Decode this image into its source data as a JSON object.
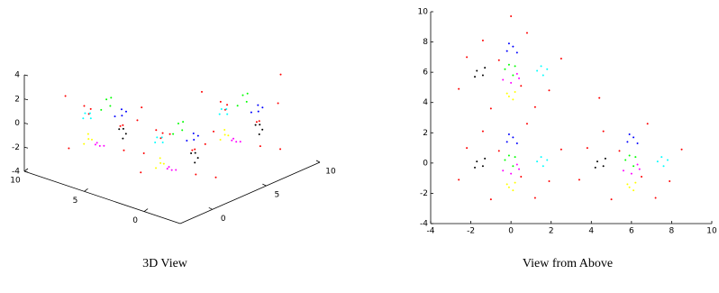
{
  "chart_data": [
    {
      "type": "scatter3d",
      "caption": "3D View",
      "xlim": [
        -3,
        10
      ],
      "ylim": [
        -3,
        10
      ],
      "zlim": [
        -4,
        4
      ],
      "xticks": [
        0,
        5,
        10
      ],
      "yticks": [
        0,
        5,
        10
      ],
      "zticks": [
        -4,
        -2,
        0,
        2,
        4
      ],
      "series": [
        {
          "color": "#ff0000",
          "x": [
            -2.2,
            1.9,
            -1,
            0.8,
            2.5,
            -2.6,
            1.2,
            -1.4,
            0.5,
            -0.6,
            -2.2,
            1.9,
            -1,
            0.8,
            2.5,
            -2.6,
            1.2,
            -1.4,
            0.5,
            -0.6,
            3.8,
            7.9,
            5,
            6.8,
            8.5,
            3.4,
            7.2,
            4.6,
            6.5,
            5.4,
            0,
            4.4
          ],
          "y": [
            7,
            4.8,
            3.6,
            8.6,
            6.9,
            4.9,
            3.7,
            8.1,
            5.1,
            6.8,
            1,
            -1.2,
            -2.4,
            2.6,
            0.9,
            -1.1,
            -2.3,
            2.1,
            -0.9,
            0.8,
            1,
            -1.2,
            -2.4,
            2.6,
            0.9,
            -1.1,
            -2.3,
            2.1,
            -0.9,
            0.8,
            9.7,
            4.3
          ],
          "z": [
            1.8,
            -2.1,
            2.6,
            -1.3,
            0.4,
            -0.8,
            2.9,
            -2.7,
            1.1,
            -0.2,
            1.8,
            -2.1,
            2.6,
            -1.3,
            0.4,
            -0.8,
            2.9,
            -2.7,
            1.1,
            -0.2,
            1.8,
            -2.1,
            2.6,
            -1.3,
            0.4,
            -0.8,
            2.9,
            -2.7,
            1.1,
            -0.2,
            2.4,
            -1.9
          ]
        },
        {
          "color": "#0000ff",
          "x": [
            -0.2,
            0.1,
            0.3,
            -0.1,
            -0.2,
            0.1,
            0.3,
            -0.1,
            5.8,
            6.1,
            6.3,
            5.9
          ],
          "y": [
            7.4,
            7.7,
            7.3,
            7.9,
            1.4,
            1.7,
            1.3,
            1.9,
            1.4,
            1.7,
            1.3,
            1.9
          ],
          "z": [
            0.3,
            0.6,
            0.1,
            0.4,
            0.3,
            0.6,
            0.1,
            0.4,
            0.3,
            0.6,
            0.1,
            0.4
          ]
        },
        {
          "color": "#000000",
          "x": [
            -1.7,
            -1.4,
            -1.3,
            -1.8,
            -1.7,
            -1.4,
            -1.3,
            -1.8,
            4.3,
            4.6,
            4.7,
            4.2
          ],
          "y": [
            6.1,
            5.8,
            6.3,
            5.7,
            0.1,
            -0.2,
            0.3,
            -0.3,
            0.1,
            -0.2,
            0.3,
            -0.3
          ],
          "z": [
            -0.2,
            0.2,
            0,
            -0.4,
            -0.2,
            0.2,
            0,
            -0.4,
            -0.2,
            0.2,
            0,
            -0.4
          ]
        },
        {
          "color": "#00ffff",
          "x": [
            1.3,
            1.6,
            1.8,
            1.5,
            1.3,
            1.6,
            1.8,
            1.5,
            7.3,
            7.6,
            7.8,
            7.5
          ],
          "y": [
            6.1,
            5.8,
            6.2,
            6.4,
            0.1,
            -0.2,
            0.2,
            0.4,
            0.1,
            -0.2,
            0.2,
            0.4
          ],
          "z": [
            0.5,
            0.1,
            0.3,
            -0.1,
            0.5,
            0.1,
            0.3,
            -0.1,
            0.5,
            0.1,
            0.3,
            -0.1
          ]
        },
        {
          "color": "#ffff00",
          "x": [
            -0.2,
            0.1,
            0.2,
            -0.1,
            -0.2,
            0.1,
            0.2,
            -0.1,
            5.8,
            6.1,
            6.2,
            5.9
          ],
          "y": [
            4.6,
            4.2,
            4.7,
            4.4,
            -1.4,
            -1.8,
            -1.3,
            -1.6,
            -1.4,
            -1.8,
            -1.3,
            -1.6
          ],
          "z": [
            -0.6,
            -0.9,
            -0.3,
            -0.5,
            -0.6,
            -0.9,
            -0.3,
            -0.5,
            -0.6,
            -0.9,
            -0.3,
            -0.5
          ]
        },
        {
          "color": "#00ff00",
          "x": [
            -0.3,
            0.2,
            0.1,
            -0.1,
            -0.3,
            0.2,
            0.1,
            -0.1,
            5.7,
            6.2,
            6.1,
            5.9
          ],
          "y": [
            6.2,
            6.4,
            5.8,
            6.5,
            0.2,
            0.4,
            -0.2,
            0.5,
            0.2,
            0.4,
            -0.2,
            0.5
          ],
          "z": [
            1.6,
            1.9,
            1.3,
            2.1,
            1.6,
            1.9,
            1.3,
            2.1,
            1.6,
            1.9,
            1.3,
            2.1
          ]
        },
        {
          "color": "#ff00ff",
          "x": [
            -0.4,
            0.3,
            0,
            0.4,
            -0.4,
            0.3,
            0,
            0.4,
            5.6,
            6.3,
            6,
            6.4
          ],
          "y": [
            5.5,
            5.9,
            5.3,
            5.6,
            -0.5,
            -0.1,
            -0.7,
            -0.4,
            -0.5,
            -0.1,
            -0.7,
            -0.4
          ],
          "z": [
            -1.4,
            -1.8,
            -1.2,
            -1.6,
            -1.4,
            -1.8,
            -1.2,
            -1.6,
            -1.4,
            -1.8,
            -1.2,
            -1.6
          ]
        }
      ]
    },
    {
      "type": "scatter",
      "caption": "View from Above",
      "xlim": [
        -4,
        10
      ],
      "ylim": [
        -4,
        10
      ],
      "xticks": [
        -4,
        -2,
        0,
        2,
        4,
        6,
        8,
        10
      ],
      "yticks": [
        -4,
        -2,
        0,
        2,
        4,
        6,
        8,
        10
      ],
      "series": [
        {
          "color": "#ff0000",
          "x": [
            -2.2,
            1.9,
            -1,
            0.8,
            2.5,
            -2.6,
            1.2,
            -1.4,
            0.5,
            -0.6,
            -2.2,
            1.9,
            -1,
            0.8,
            2.5,
            -2.6,
            1.2,
            -1.4,
            0.5,
            -0.6,
            3.8,
            7.9,
            5,
            6.8,
            8.5,
            3.4,
            7.2,
            4.6,
            6.5,
            5.4,
            0,
            4.4
          ],
          "y": [
            7,
            4.8,
            3.6,
            8.6,
            6.9,
            4.9,
            3.7,
            8.1,
            5.1,
            6.8,
            1,
            -1.2,
            -2.4,
            2.6,
            0.9,
            -1.1,
            -2.3,
            2.1,
            -0.9,
            0.8,
            1,
            -1.2,
            -2.4,
            2.6,
            0.9,
            -1.1,
            -2.3,
            2.1,
            -0.9,
            0.8,
            9.7,
            4.3
          ]
        },
        {
          "color": "#0000ff",
          "x": [
            -0.2,
            0.1,
            0.3,
            -0.1,
            -0.2,
            0.1,
            0.3,
            -0.1,
            5.8,
            6.1,
            6.3,
            5.9
          ],
          "y": [
            7.4,
            7.7,
            7.3,
            7.9,
            1.4,
            1.7,
            1.3,
            1.9,
            1.4,
            1.7,
            1.3,
            1.9
          ]
        },
        {
          "color": "#000000",
          "x": [
            -1.7,
            -1.4,
            -1.3,
            -1.8,
            -1.7,
            -1.4,
            -1.3,
            -1.8,
            4.3,
            4.6,
            4.7,
            4.2
          ],
          "y": [
            6.1,
            5.8,
            6.3,
            5.7,
            0.1,
            -0.2,
            0.3,
            -0.3,
            0.1,
            -0.2,
            0.3,
            -0.3
          ]
        },
        {
          "color": "#00ffff",
          "x": [
            1.3,
            1.6,
            1.8,
            1.5,
            1.3,
            1.6,
            1.8,
            1.5,
            7.3,
            7.6,
            7.8,
            7.5
          ],
          "y": [
            6.1,
            5.8,
            6.2,
            6.4,
            0.1,
            -0.2,
            0.2,
            0.4,
            0.1,
            -0.2,
            0.2,
            0.4
          ]
        },
        {
          "color": "#ffff00",
          "x": [
            -0.2,
            0.1,
            0.2,
            -0.1,
            -0.2,
            0.1,
            0.2,
            -0.1,
            5.8,
            6.1,
            6.2,
            5.9
          ],
          "y": [
            4.6,
            4.2,
            4.7,
            4.4,
            -1.4,
            -1.8,
            -1.3,
            -1.6,
            -1.4,
            -1.8,
            -1.3,
            -1.6
          ]
        },
        {
          "color": "#00ff00",
          "x": [
            -0.3,
            0.2,
            0.1,
            -0.1,
            -0.3,
            0.2,
            0.1,
            -0.1,
            5.7,
            6.2,
            6.1,
            5.9
          ],
          "y": [
            6.2,
            6.4,
            5.8,
            6.5,
            0.2,
            0.4,
            -0.2,
            0.5,
            0.2,
            0.4,
            -0.2,
            0.5
          ]
        },
        {
          "color": "#ff00ff",
          "x": [
            -0.4,
            0.3,
            0,
            0.4,
            -0.4,
            0.3,
            0,
            0.4,
            5.6,
            6.3,
            6,
            6.4
          ],
          "y": [
            5.5,
            5.9,
            5.3,
            5.6,
            -0.5,
            -0.1,
            -0.7,
            -0.4,
            -0.5,
            -0.1,
            -0.7,
            -0.4
          ]
        }
      ]
    }
  ]
}
